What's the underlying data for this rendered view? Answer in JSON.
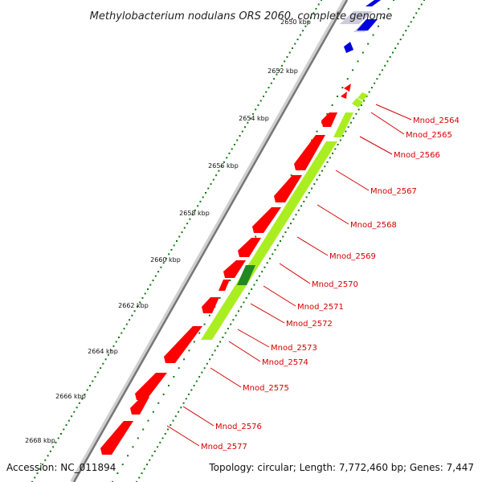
{
  "title": "Methylobacterium nodulans ORS 2060, complete genome",
  "footer": {
    "accession": "Accession: NC_011894",
    "summary": "Topology: circular; Length: 7,772,460 bp; Genes: 7,447"
  },
  "ticks": [
    "2650 kbp",
    "2652 kbp",
    "2654 kbp",
    "2656 kbp",
    "2658 kbp",
    "2660 kbp",
    "2662 kbp",
    "2664 kbp",
    "2666 kbp",
    "2668 kbp"
  ],
  "genes": [
    "Mnod_2564",
    "Mnod_2565",
    "Mnod_2566",
    "Mnod_2567",
    "Mnod_2568",
    "Mnod_2569",
    "Mnod_2570",
    "Mnod_2571",
    "Mnod_2572",
    "Mnod_2573",
    "Mnod_2574",
    "Mnod_2575",
    "Mnod_2576",
    "Mnod_2577"
  ],
  "colors": {
    "cds": "#ff0000",
    "cds_dark": "#c80000",
    "green_track": "#aaee22",
    "green_dark": "#228822",
    "blue_track": "#0000dd",
    "backbone": "#777777",
    "dots": "#117711",
    "label": "#d40000"
  }
}
